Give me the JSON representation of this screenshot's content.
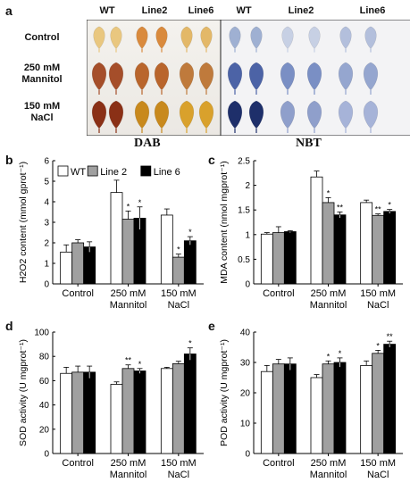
{
  "panel_a": {
    "letter": "a",
    "columns": [
      "WT",
      "Line2",
      "Line6",
      "WT",
      "Line2",
      "Line6"
    ],
    "rows": [
      {
        "lines": [
          "Control"
        ]
      },
      {
        "lines": [
          "250 mM",
          "Mannitol"
        ]
      },
      {
        "lines": [
          "150 mM",
          "NaCl"
        ]
      }
    ],
    "stains": [
      "DAB",
      "NBT"
    ]
  },
  "legend": [
    "WT",
    "Line 2",
    "Line 6"
  ],
  "series_colors": [
    "#ffffff",
    "#a0a0a0",
    "#000000"
  ],
  "chart_data": [
    {
      "panel": "b",
      "type": "bar",
      "categories": [
        "Control",
        "250 mM Mannitol",
        "150 mM NaCl"
      ],
      "category_lines": [
        [
          "Control"
        ],
        [
          "250 mM",
          "Mannitol"
        ],
        [
          "150 mM",
          "NaCl"
        ]
      ],
      "ylabel": "H2O2 content (mmol gprot⁻¹)",
      "ylim": [
        0,
        6
      ],
      "yticks": [
        0,
        1,
        2,
        3,
        4,
        5,
        6
      ],
      "series": [
        {
          "name": "WT",
          "values": [
            1.55,
            4.45,
            3.35
          ],
          "errors": [
            0.35,
            0.6,
            0.3
          ],
          "stars": [
            "",
            "",
            ""
          ]
        },
        {
          "name": "Line 2",
          "values": [
            2.0,
            3.15,
            1.3
          ],
          "errors": [
            0.15,
            0.4,
            0.15
          ],
          "stars": [
            "",
            "*",
            "*"
          ]
        },
        {
          "name": "Line 6",
          "values": [
            1.8,
            3.2,
            2.1
          ],
          "errors": [
            0.25,
            0.55,
            0.2
          ],
          "stars": [
            "",
            "*",
            "*"
          ]
        }
      ],
      "legend": "top-left"
    },
    {
      "panel": "c",
      "type": "bar",
      "categories": [
        "Control",
        "250 mM Mannitol",
        "150 mM NaCl"
      ],
      "category_lines": [
        [
          "Control"
        ],
        [
          "250 mM",
          "Mannitol"
        ],
        [
          "150 mM",
          "NaCl"
        ]
      ],
      "ylabel": "MDA content (nmol mgprot⁻¹)",
      "ylim": [
        0,
        2.5
      ],
      "yticks": [
        0,
        0.5,
        1,
        1.5,
        2,
        2.5
      ],
      "series": [
        {
          "name": "WT",
          "values": [
            1.01,
            2.17,
            1.65
          ],
          "errors": [
            0.03,
            0.12,
            0.05
          ],
          "stars": [
            "",
            "",
            ""
          ]
        },
        {
          "name": "Line 2",
          "values": [
            1.04,
            1.65,
            1.39
          ],
          "errors": [
            0.12,
            0.1,
            0.03
          ],
          "stars": [
            "",
            "*",
            "**"
          ]
        },
        {
          "name": "Line 6",
          "values": [
            1.06,
            1.4,
            1.47
          ],
          "errors": [
            0.02,
            0.06,
            0.04
          ],
          "stars": [
            "",
            "**",
            "*"
          ]
        }
      ]
    },
    {
      "panel": "d",
      "type": "bar",
      "categories": [
        "Control",
        "250 mM Mannitol",
        "150 mM NaCl"
      ],
      "category_lines": [
        [
          "Control"
        ],
        [
          "250 mM",
          "Mannitol"
        ],
        [
          "150 mM",
          "NaCl"
        ]
      ],
      "ylabel": "SOD activity (U mgprot⁻¹)",
      "ylim": [
        0,
        100
      ],
      "yticks": [
        0,
        20,
        40,
        60,
        80,
        100
      ],
      "series": [
        {
          "name": "WT",
          "values": [
            66,
            57,
            70
          ],
          "errors": [
            5,
            2,
            1
          ],
          "stars": [
            "",
            "",
            ""
          ]
        },
        {
          "name": "Line 2",
          "values": [
            67,
            70,
            74
          ],
          "errors": [
            5,
            3,
            2
          ],
          "stars": [
            "",
            "**",
            ""
          ]
        },
        {
          "name": "Line 6",
          "values": [
            67,
            68,
            82
          ],
          "errors": [
            5,
            2,
            5
          ],
          "stars": [
            "",
            "*",
            "*"
          ]
        }
      ]
    },
    {
      "panel": "e",
      "type": "bar",
      "categories": [
        "Control",
        "250 mM Mannitol",
        "150 mM NaCl"
      ],
      "category_lines": [
        [
          "Control"
        ],
        [
          "250 mM",
          "Mannitol"
        ],
        [
          "150 mM",
          "NaCl"
        ]
      ],
      "ylabel": "POD activity (U  mgprot⁻¹)",
      "ylim": [
        0,
        40
      ],
      "yticks": [
        0,
        10,
        20,
        30,
        40
      ],
      "series": [
        {
          "name": "WT",
          "values": [
            27,
            25,
            29
          ],
          "errors": [
            2,
            1,
            1.5
          ],
          "stars": [
            "",
            "",
            ""
          ]
        },
        {
          "name": "Line 2",
          "values": [
            29.5,
            29.5,
            33
          ],
          "errors": [
            1.5,
            1,
            1
          ],
          "stars": [
            "",
            "*",
            "*"
          ]
        },
        {
          "name": "Line 6",
          "values": [
            29.5,
            30,
            36
          ],
          "errors": [
            2,
            1.5,
            1
          ],
          "stars": [
            "",
            "*",
            "**"
          ]
        }
      ]
    }
  ]
}
